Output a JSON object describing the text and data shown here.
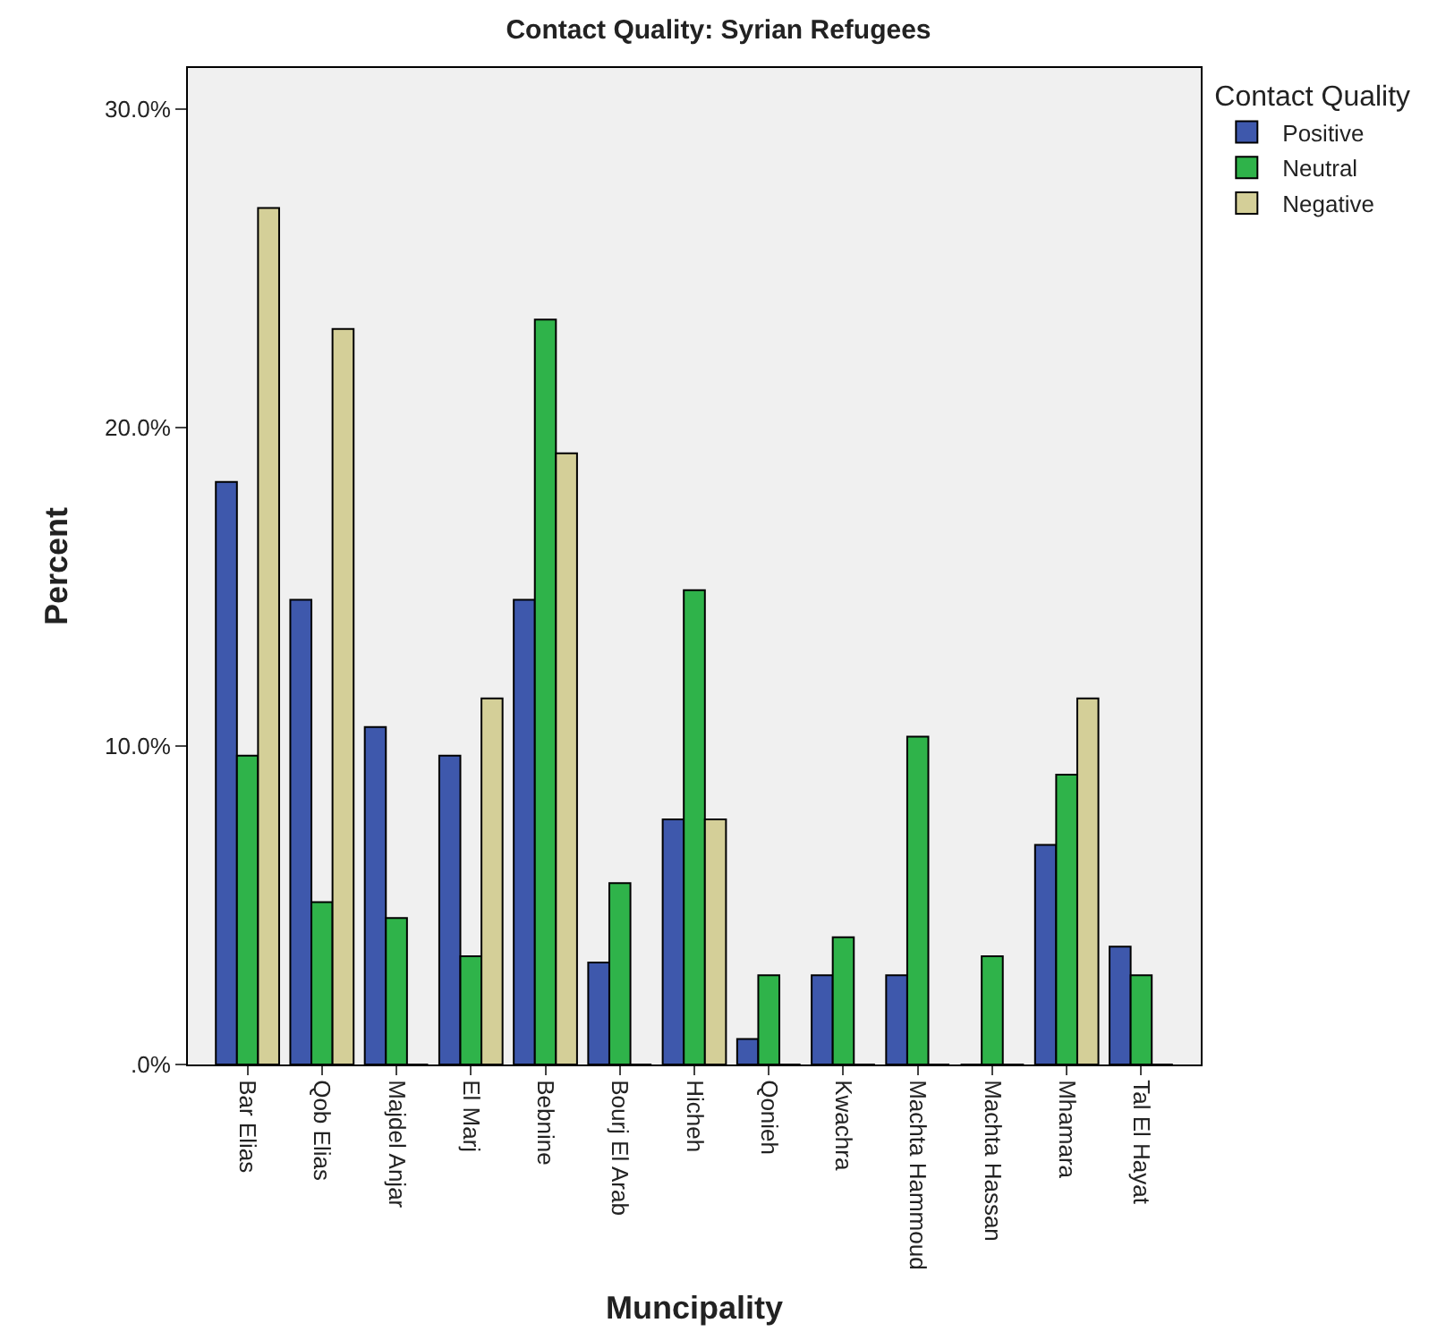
{
  "chart_data": {
    "type": "bar",
    "title": "Contact Quality: Syrian Refugees",
    "xlabel": "Muncipality",
    "ylabel": "Percent",
    "legend_title": "Contact Quality",
    "categories": [
      "Bar Elias",
      "Qob Elias",
      "Majdel Anjar",
      "El Marj",
      "Bebnine",
      "Bourj El Arab",
      "Hicheh",
      "Qonieh",
      "Kwachra",
      "Machta Hammoud",
      "Machta Hassan",
      "Mhamara",
      "Tal El Hayat"
    ],
    "series": [
      {
        "name": "Positive",
        "color": "#3e58ac",
        "values": [
          18.3,
          14.6,
          10.6,
          9.7,
          14.6,
          3.2,
          7.7,
          0.8,
          2.8,
          2.8,
          0,
          6.9,
          3.7
        ]
      },
      {
        "name": "Neutral",
        "color": "#2fb34a",
        "values": [
          9.7,
          5.1,
          4.6,
          3.4,
          23.4,
          5.7,
          14.9,
          2.8,
          4.0,
          10.3,
          3.4,
          9.1,
          2.8
        ]
      },
      {
        "name": "Negative",
        "color": "#d4cf98",
        "values": [
          26.9,
          23.1,
          0,
          11.5,
          19.2,
          0,
          7.7,
          0,
          0,
          0,
          0,
          11.5,
          0
        ]
      }
    ],
    "ylim": [
      0,
      31.3
    ],
    "yticks": [
      {
        "value": 0,
        "label": ".0%"
      },
      {
        "value": 10,
        "label": "10.0%"
      },
      {
        "value": 20,
        "label": "20.0%"
      },
      {
        "value": 30,
        "label": "30.0%"
      }
    ],
    "grid": false,
    "legend": "right"
  }
}
